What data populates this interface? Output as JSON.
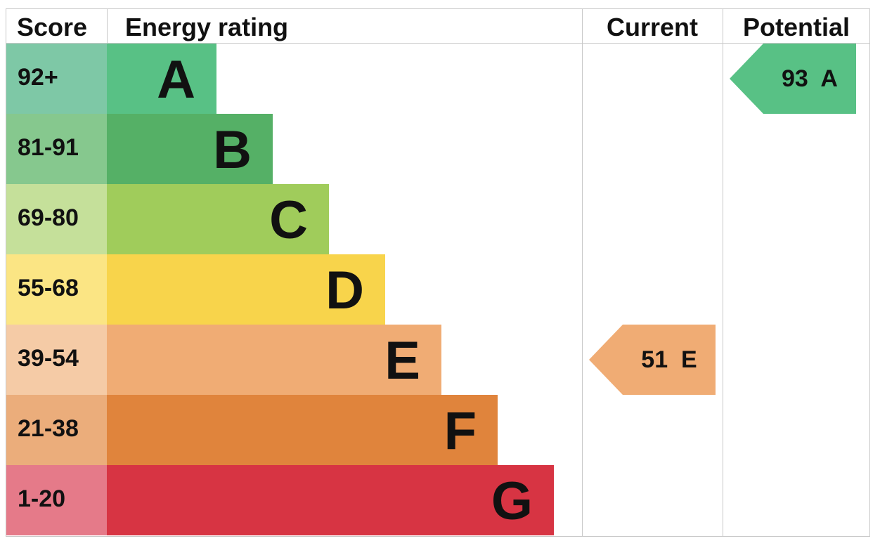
{
  "chart_data": {
    "type": "table",
    "headers": {
      "score": "Score",
      "rating": "Energy rating",
      "current": "Current",
      "potential": "Potential"
    },
    "bands": [
      {
        "range": "92+",
        "letter": "A",
        "bar_color": "#58c185",
        "score_color": "#7ec8a6"
      },
      {
        "range": "81-91",
        "letter": "B",
        "bar_color": "#55b066",
        "score_color": "#86c88e"
      },
      {
        "range": "69-80",
        "letter": "C",
        "bar_color": "#a0cc5b",
        "score_color": "#c5e09a"
      },
      {
        "range": "55-68",
        "letter": "D",
        "bar_color": "#f8d44b",
        "score_color": "#fbe584"
      },
      {
        "range": "39-54",
        "letter": "E",
        "bar_color": "#f0ac74",
        "score_color": "#f5cba6"
      },
      {
        "range": "21-38",
        "letter": "F",
        "bar_color": "#e0843c",
        "score_color": "#ebad7b"
      },
      {
        "range": "1-20",
        "letter": "G",
        "bar_color": "#d73443",
        "score_color": "#e57a89"
      }
    ],
    "current": {
      "value": 51,
      "letter": "E",
      "label": "51  E",
      "color": "#f0ac74"
    },
    "potential": {
      "value": 93,
      "letter": "A",
      "label": "93  A",
      "color": "#58c185"
    }
  }
}
